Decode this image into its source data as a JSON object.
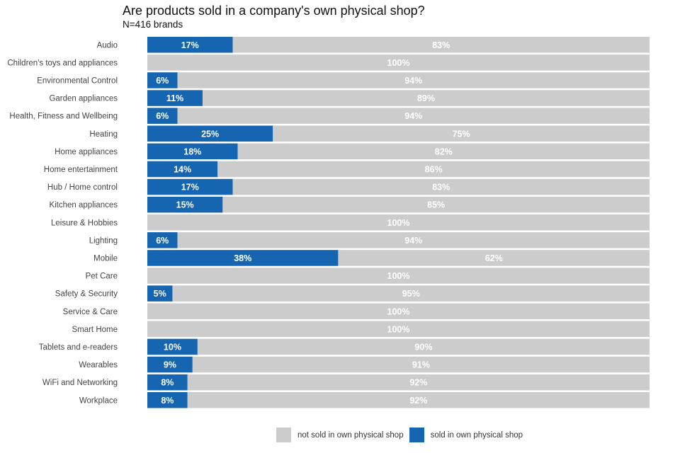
{
  "chart_data": {
    "type": "bar",
    "orientation": "horizontal",
    "stacked": true,
    "title": "Are products sold in a company's own physical shop?",
    "subtitle": "N=416 brands",
    "xlabel": "",
    "ylabel": "",
    "xlim": [
      0,
      100
    ],
    "grid": false,
    "legend_position": "bottom",
    "categories": [
      "Audio",
      "Children's toys and appliances",
      "Environmental Control",
      "Garden appliances",
      "Health, Fitness and Wellbeing",
      "Heating",
      "Home appliances",
      "Home entertainment",
      "Hub / Home control",
      "Kitchen appliances",
      "Leisure & Hobbies",
      "Lighting",
      "Mobile",
      "Pet Care",
      "Safety & Security",
      "Service & Care",
      "Smart Home",
      "Tablets and e-readers",
      "Wearables",
      "WiFi and Networking",
      "Workplace"
    ],
    "series": [
      {
        "name": "sold in own physical shop",
        "color": "#1565b0",
        "values": [
          17,
          0,
          6,
          11,
          6,
          25,
          18,
          14,
          17,
          15,
          0,
          6,
          38,
          0,
          5,
          0,
          0,
          10,
          9,
          8,
          8
        ]
      },
      {
        "name": "not sold in own physical shop",
        "color": "#cccccc",
        "values": [
          83,
          100,
          94,
          89,
          94,
          75,
          82,
          86,
          83,
          85,
          100,
          94,
          62,
          100,
          95,
          100,
          100,
          90,
          91,
          92,
          92
        ]
      }
    ],
    "value_format": "{v}%"
  },
  "legend": [
    {
      "label": "not sold in own physical shop",
      "color": "#cccccc"
    },
    {
      "label": "sold in own physical shop",
      "color": "#1565b0"
    }
  ]
}
